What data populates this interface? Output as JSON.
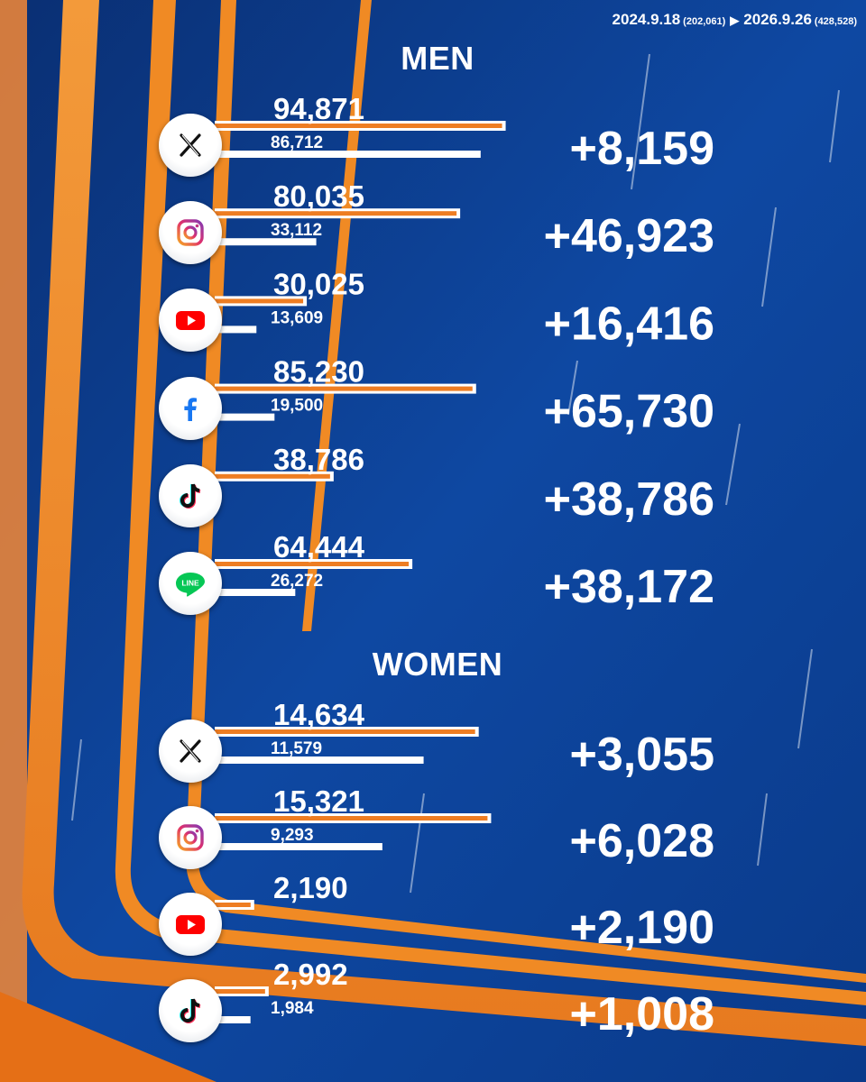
{
  "header": {
    "from_date": "2024.9.18",
    "from_total": "(202,061)",
    "to_date": "2026.9.26",
    "to_total": "(428,528)"
  },
  "sections": [
    {
      "title": "MEN"
    },
    {
      "title": "WOMEN"
    }
  ],
  "colors": {
    "background": "#0b3a86",
    "accent_orange": "#f08a24",
    "bar_white": "#ffffff",
    "bar_orange": "#ee7d22"
  },
  "chart_data": [
    {
      "type": "bar",
      "title": "MEN",
      "series": [
        {
          "name": "2026.9.26",
          "values": [
            94871,
            80035,
            30025,
            85230,
            38786,
            64444
          ]
        },
        {
          "name": "2024.9.18",
          "values": [
            86712,
            33112,
            13609,
            19500,
            0,
            26272
          ]
        }
      ],
      "categories": [
        "X",
        "Instagram",
        "YouTube",
        "Facebook",
        "TikTok",
        "LINE"
      ],
      "icons": [
        "x-icon",
        "instagram-icon",
        "youtube-icon",
        "facebook-icon",
        "tiktok-icon",
        "line-icon"
      ],
      "labels_top": [
        "94,871",
        "80,035",
        "30,025",
        "85,230",
        "38,786",
        "64,444"
      ],
      "labels_bottom": [
        "86,712",
        "33,112",
        "13,609",
        "19,500",
        "",
        "26,272"
      ],
      "differences": [
        "+8,159",
        "+46,923",
        "+16,416",
        "+65,730",
        "+38,786",
        "+38,172"
      ],
      "line_label": "LINE"
    },
    {
      "type": "bar",
      "title": "WOMEN",
      "series": [
        {
          "name": "2026.9.26",
          "values": [
            14634,
            15321,
            2190,
            2992
          ]
        },
        {
          "name": "2024.9.18",
          "values": [
            11579,
            9293,
            0,
            1984
          ]
        }
      ],
      "categories": [
        "X",
        "Instagram",
        "YouTube",
        "TikTok"
      ],
      "icons": [
        "x-icon",
        "instagram-icon",
        "youtube-icon",
        "tiktok-icon"
      ],
      "labels_top": [
        "14,634",
        "15,321",
        "2,190",
        "2,992"
      ],
      "labels_bottom": [
        "11,579",
        "9,293",
        "",
        "1,984"
      ],
      "differences": [
        "+3,055",
        "+6,028",
        "+2,190",
        "+1,008"
      ]
    }
  ]
}
